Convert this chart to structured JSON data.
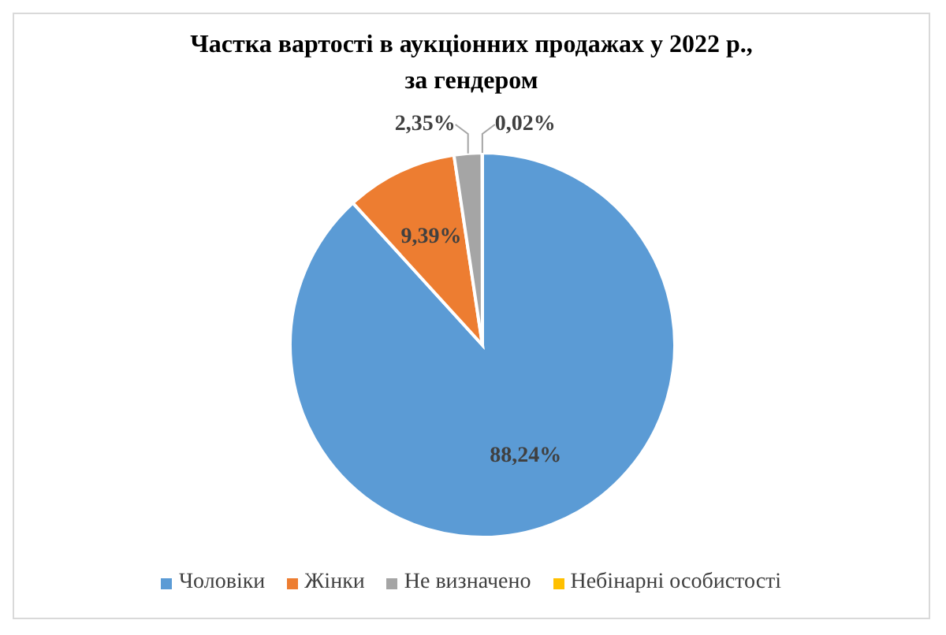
{
  "chart_data": {
    "type": "pie",
    "title": "Частка вартості в аукціонних продажах у 2022 р., за гендером",
    "categories": [
      "Чоловіки",
      "Жінки",
      "Не визначено",
      "Небінарні особистості"
    ],
    "values": [
      88.24,
      9.39,
      2.35,
      0.02
    ],
    "colors": [
      "#5b9bd5",
      "#ed7d31",
      "#a5a5a5",
      "#ffc000"
    ],
    "value_labels": [
      "88,24%",
      "9,39%",
      "2,35%",
      "0,02%"
    ],
    "legend": "bottom"
  }
}
